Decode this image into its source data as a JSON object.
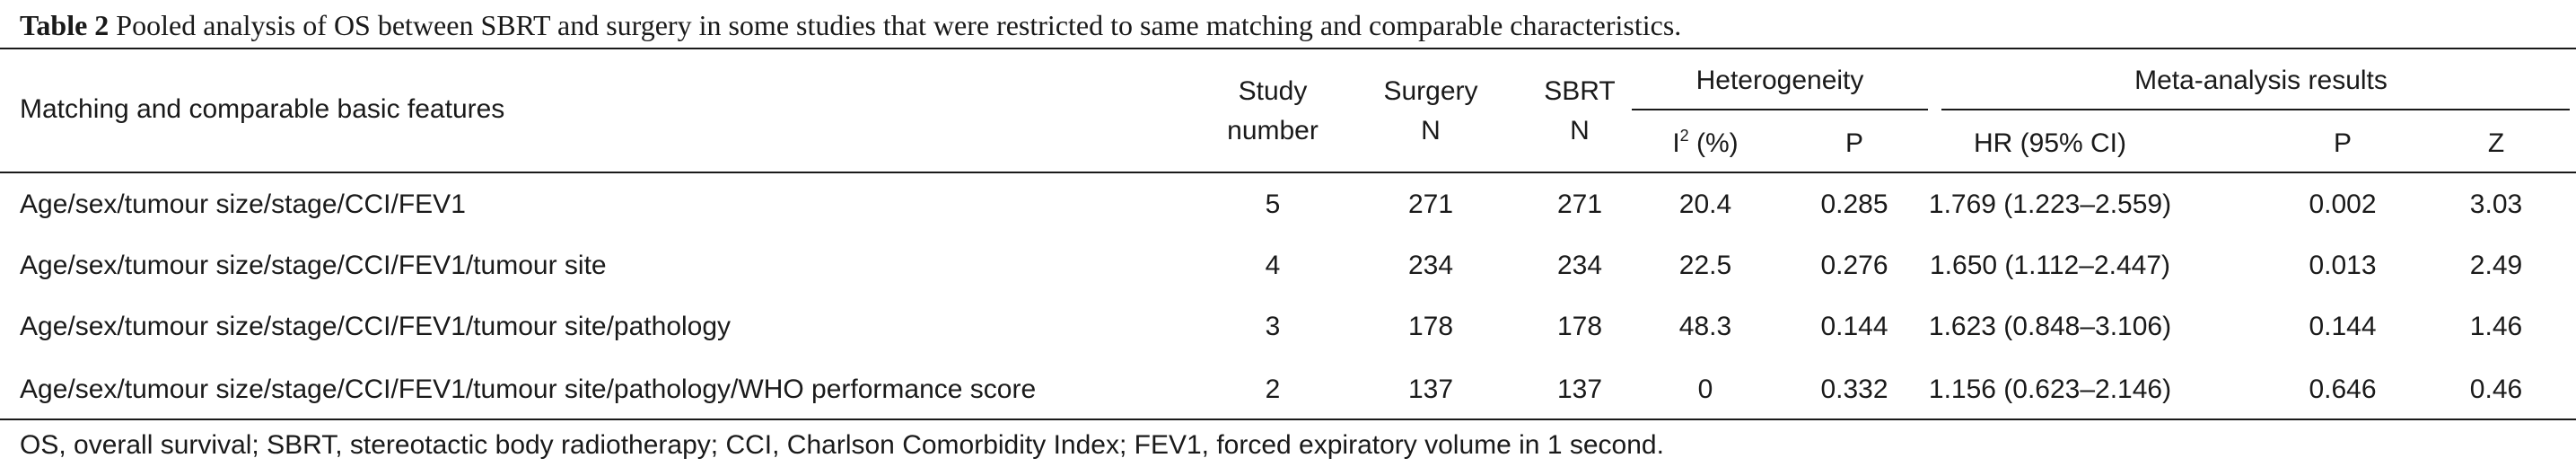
{
  "caption": {
    "label": "Table 2",
    "text": "Pooled analysis of OS between SBRT and surgery in some studies that were restricted to same matching and comparable characteristics."
  },
  "headers": {
    "features": "Matching and comparable basic features",
    "study_number_1": "Study",
    "study_number_2": "number",
    "surgery_1": "Surgery",
    "surgery_2": "N",
    "sbrt_1": "SBRT",
    "sbrt_2": "N",
    "heterogeneity": "Heterogeneity",
    "i2_pre": "I",
    "i2_sup": "2",
    "i2_post": " (%)",
    "het_p": "P",
    "meta_analysis": "Meta-analysis results",
    "hr": "HR (95% CI)",
    "meta_p": "P",
    "z": "Z"
  },
  "rows": [
    {
      "features": "Age/sex/tumour size/stage/CCI/FEV1",
      "study": "5",
      "surgery": "271",
      "sbrt": "271",
      "i2": "20.4",
      "het_p": "0.285",
      "hr": "1.769 (1.223–2.559)",
      "p": "0.002",
      "z": "3.03"
    },
    {
      "features": "Age/sex/tumour size/stage/CCI/FEV1/tumour site",
      "study": "4",
      "surgery": "234",
      "sbrt": "234",
      "i2": "22.5",
      "het_p": "0.276",
      "hr": "1.650 (1.112–2.447)",
      "p": "0.013",
      "z": "2.49"
    },
    {
      "features": "Age/sex/tumour size/stage/CCI/FEV1/tumour site/pathology",
      "study": "3",
      "surgery": "178",
      "sbrt": "178",
      "i2": "48.3",
      "het_p": "0.144",
      "hr": "1.623 (0.848–3.106)",
      "p": "0.144",
      "z": "1.46"
    },
    {
      "features": "Age/sex/tumour size/stage/CCI/FEV1/tumour site/pathology/WHO performance score",
      "study": "2",
      "surgery": "137",
      "sbrt": "137",
      "i2": "0",
      "het_p": "0.332",
      "hr": "1.156 (0.623–2.146)",
      "p": "0.646",
      "z": "0.46"
    }
  ],
  "footnote": "OS, overall survival; SBRT, stereotactic body radiotherapy; CCI, Charlson Comorbidity Index; FEV1, forced expiratory volume in 1 second."
}
